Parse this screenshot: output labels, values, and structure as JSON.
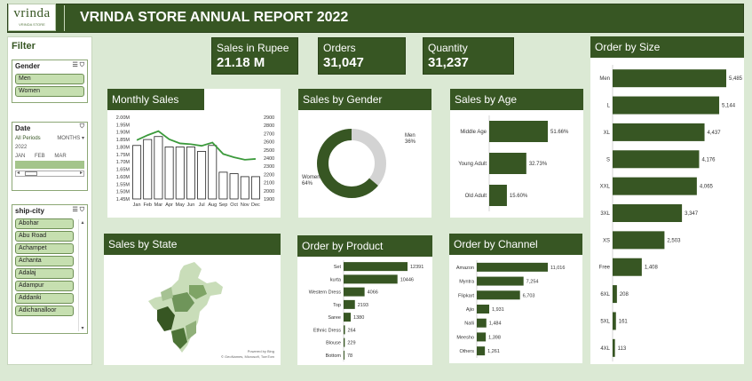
{
  "logo": {
    "main": "vrinda",
    "sub": "VRINDA STORE"
  },
  "title": "VRINDA STORE ANNUAL REPORT 2022",
  "kpis": {
    "sales": {
      "label": "Sales in Rupee",
      "value": "21.18 M"
    },
    "orders": {
      "label": "Orders",
      "value": "31,047"
    },
    "quantity": {
      "label": "Quantity",
      "value": "31,237"
    }
  },
  "filter": {
    "title": "Filter",
    "gender": {
      "header": "Gender",
      "items": [
        "Men",
        "Women"
      ]
    },
    "date": {
      "header": "Date",
      "period": "All Periods",
      "unit": "MONTHS",
      "year": "2022",
      "months": [
        "JAN",
        "FEB",
        "MAR"
      ]
    },
    "city": {
      "header": "ship-city",
      "items": [
        "Abohar",
        "Abu Road",
        "Achampet",
        "Achanta",
        "Adalaj",
        "Adampur",
        "Addanki",
        "Adichanalloor"
      ]
    }
  },
  "panels": {
    "monthly": "Monthly Sales",
    "gender": "Sales by Gender",
    "age": "Sales by Age",
    "state": "Sales by State",
    "product": "Order by Product",
    "channel": "Order by Channel",
    "size": "Order by Size"
  },
  "map_credit": {
    "line1": "Powered by Bing",
    "line2": "© GeoNames, Microsoft, TomTom"
  },
  "colors": {
    "primary": "#375623",
    "bar": "#375623",
    "line": "#3c9a3c",
    "donut_light": "#d3d3d3"
  },
  "chart_data": [
    {
      "type": "bar",
      "title": "Monthly Sales",
      "categories": [
        "Jan",
        "Feb",
        "Mar",
        "Apr",
        "May",
        "Jun",
        "Jul",
        "Aug",
        "Sep",
        "Oct",
        "Nov",
        "Dec"
      ],
      "series": [
        {
          "values": [
            1.81,
            1.85,
            1.87,
            1.8,
            1.8,
            1.8,
            1.77,
            1.81,
            1.63,
            1.62,
            1.6,
            1.6
          ]
        },
        {
          "values": [
            2620,
            2680,
            2730,
            2630,
            2580,
            2570,
            2550,
            2590,
            2450,
            2410,
            2380,
            2390
          ]
        }
      ],
      "y_ticks": [
        "2.00M",
        "1.95M",
        "1.90M",
        "1.85M",
        "1.80M",
        "1.75M",
        "1.70M",
        "1.65M",
        "1.60M",
        "1.55M",
        "1.50M",
        "1.45M"
      ],
      "y2_ticks": [
        "2900",
        "2800",
        "2700",
        "2600",
        "2500",
        "2400",
        "2300",
        "2200",
        "2100",
        "2000",
        "1900"
      ],
      "ylim": [
        1.45,
        2.0
      ],
      "y2lim": [
        1900,
        2900
      ]
    },
    {
      "type": "pie",
      "title": "Sales by Gender",
      "categories": [
        "Men",
        "Women"
      ],
      "values": [
        36,
        64
      ],
      "labels": [
        "Men\n36%",
        "Women\n64%"
      ]
    },
    {
      "type": "bar",
      "title": "Sales by Age",
      "categories": [
        "Middle Age",
        "Young Adult",
        "Old Adult"
      ],
      "values": [
        51.66,
        32.73,
        15.6
      ],
      "labels": [
        "51.66%",
        "32.73%",
        "15.60%"
      ]
    },
    {
      "type": "bar",
      "title": "Order by Product",
      "categories": [
        "Set",
        "kurta",
        "Western Dress",
        "Top",
        "Saree",
        "Ethnic Dress",
        "Blouse",
        "Bottom"
      ],
      "values": [
        12391,
        10446,
        4066,
        2193,
        1380,
        264,
        229,
        78
      ],
      "labels": [
        "12391",
        "10446",
        "4066",
        "2193",
        "1380",
        "264",
        "229",
        "78"
      ]
    },
    {
      "type": "bar",
      "title": "Order by Channel",
      "categories": [
        "Amazon",
        "Myntra",
        "Flipkart",
        "Ajio",
        "Nalli",
        "Meesho",
        "Others"
      ],
      "values": [
        11016,
        7254,
        6703,
        1931,
        1484,
        1398,
        1261
      ],
      "labels": [
        "11,016",
        "7,254",
        "6,703",
        "1,931",
        "1,484",
        "1,398",
        "1,261"
      ]
    },
    {
      "type": "bar",
      "title": "Order by Size",
      "categories": [
        "Men",
        "L",
        "XL",
        "S",
        "XXL",
        "3XL",
        "XS",
        "Free",
        "6XL",
        "5XL",
        "4XL"
      ],
      "values": [
        5485,
        5144,
        4437,
        4176,
        4065,
        3347,
        2503,
        1408,
        208,
        161,
        113
      ],
      "labels": [
        "5,485",
        "5,144",
        "4,437",
        "4,176",
        "4,065",
        "3,347",
        "2,503",
        "1,408",
        "208",
        "161",
        "113"
      ]
    }
  ]
}
